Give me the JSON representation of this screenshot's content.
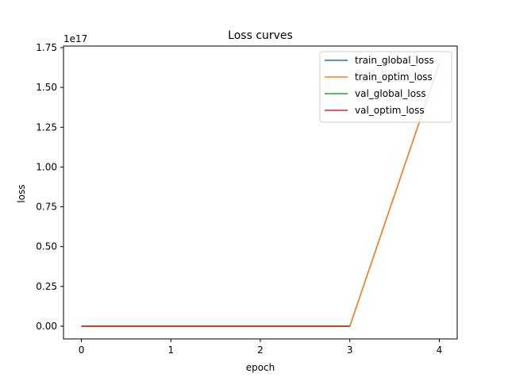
{
  "chart_data": {
    "type": "line",
    "title": "Loss curves",
    "xlabel": "epoch",
    "ylabel": "loss",
    "y_offset_label": "1e17",
    "x": [
      0,
      1,
      2,
      3,
      4
    ],
    "xticks": [
      0,
      1,
      2,
      3,
      4
    ],
    "yticks": [
      0.0,
      0.25,
      0.5,
      0.75,
      1.0,
      1.25,
      1.5,
      1.75
    ],
    "ytick_labels": [
      "0.00",
      "0.25",
      "0.50",
      "0.75",
      "1.00",
      "1.25",
      "1.50",
      "1.75"
    ],
    "xlim": [
      -0.2,
      4.2
    ],
    "ylim": [
      -0.08,
      1.76
    ],
    "y_scale": 1e+17,
    "grid": false,
    "legend_position": "top-right",
    "series": [
      {
        "name": "train_global_loss",
        "color": "#1f77b4",
        "values": [
          0,
          0,
          0,
          0,
          1.65
        ]
      },
      {
        "name": "train_optim_loss",
        "color": "#ff7f0e",
        "values": [
          0,
          0,
          0,
          0,
          1.65
        ]
      },
      {
        "name": "val_global_loss",
        "color": "#2ca02c",
        "values": [
          0,
          0,
          0,
          0,
          null
        ]
      },
      {
        "name": "val_optim_loss",
        "color": "#d62728",
        "values": [
          0,
          0,
          0,
          0,
          null
        ]
      }
    ]
  }
}
